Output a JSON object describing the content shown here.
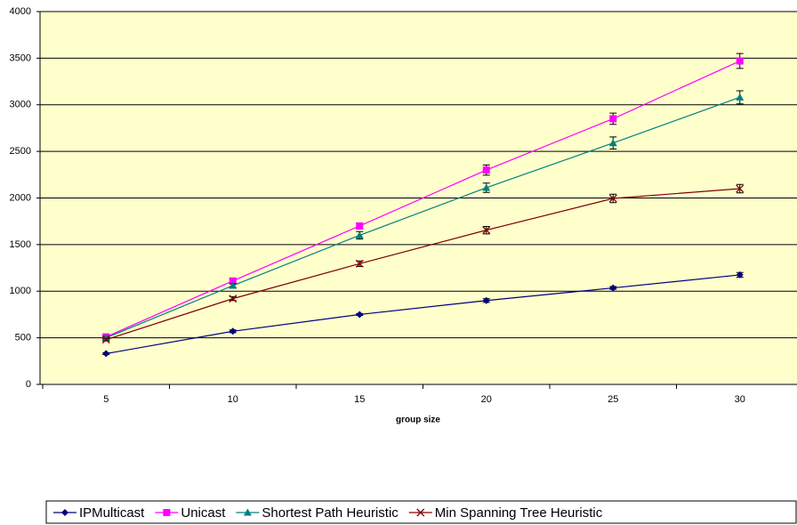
{
  "chart_data": {
    "type": "line",
    "categories": [
      "5",
      "10",
      "15",
      "20",
      "25",
      "30"
    ],
    "xlabel": "group size",
    "ylim": [
      0,
      4000
    ],
    "yticks": [
      0,
      500,
      1000,
      1500,
      2000,
      2500,
      3000,
      3500,
      4000
    ],
    "grid": true,
    "legend": "bottom",
    "series": [
      {
        "name": "IPMulticast",
        "color": "#000080",
        "marker": "diamond",
        "values": [
          330,
          570,
          750,
          900,
          1035,
          1175
        ],
        "errors": [
          10,
          15,
          10,
          20,
          15,
          25
        ]
      },
      {
        "name": "Unicast",
        "color": "#ff00ff",
        "marker": "square",
        "values": [
          510,
          1110,
          1700,
          2300,
          2850,
          3470
        ],
        "errors": [
          20,
          25,
          30,
          55,
          60,
          80
        ]
      },
      {
        "name": "Shortest Path Heuristic",
        "color": "#008080",
        "marker": "triangle",
        "values": [
          500,
          1060,
          1600,
          2110,
          2590,
          3080
        ],
        "errors": [
          15,
          20,
          40,
          50,
          65,
          70
        ]
      },
      {
        "name": "Min Spanning Tree Heuristic",
        "color": "#800000",
        "marker": "x",
        "values": [
          480,
          920,
          1295,
          1655,
          1995,
          2100
        ],
        "errors": [
          15,
          20,
          30,
          40,
          45,
          45
        ]
      }
    ]
  }
}
